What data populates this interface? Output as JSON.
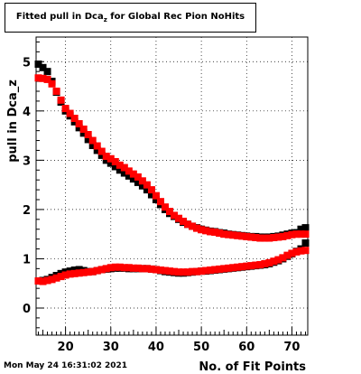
{
  "header": {
    "title_main": "Fitted pull in Dca",
    "title_sub": "z",
    "title_rest": " for Global Rec Pion NoHits"
  },
  "footer": {
    "timestamp": "Mon May 24 16:31:02 2021"
  },
  "chart_data": {
    "type": "scatter",
    "title": "Fitted pull in Dca_z for Global Rec Pion NoHits",
    "xlabel": "No. of Fit Points",
    "ylabel": "pull in Dca_z",
    "xlim": [
      13.5,
      73.5
    ],
    "ylim": [
      -0.55,
      5.5
    ],
    "x_ticks": [
      20,
      30,
      40,
      50,
      60,
      70
    ],
    "y_ticks": [
      0,
      1,
      2,
      3,
      4,
      5
    ],
    "grid": true,
    "series": [
      {
        "color": "#000000",
        "marker": "square",
        "x": [
          14,
          15,
          16,
          17,
          18,
          19,
          20,
          21,
          22,
          23,
          24,
          25,
          26,
          27,
          28,
          29,
          30,
          31,
          32,
          33,
          34,
          35,
          36,
          37,
          38,
          39,
          40,
          41,
          42,
          43,
          44,
          45,
          46,
          47,
          48,
          49,
          50,
          51,
          52,
          53,
          54,
          55,
          56,
          57,
          58,
          59,
          60,
          61,
          62,
          63,
          64,
          65,
          66,
          67,
          68,
          69,
          70,
          71,
          72,
          73
        ],
        "y": [
          4.95,
          4.88,
          4.8,
          4.6,
          4.38,
          4.18,
          4.0,
          3.9,
          3.78,
          3.66,
          3.55,
          3.42,
          3.3,
          3.2,
          3.1,
          3.0,
          2.94,
          2.87,
          2.8,
          2.74,
          2.68,
          2.62,
          2.55,
          2.48,
          2.4,
          2.3,
          2.2,
          2.1,
          2.0,
          1.92,
          1.86,
          1.8,
          1.74,
          1.7,
          1.66,
          1.63,
          1.6,
          1.58,
          1.56,
          1.55,
          1.53,
          1.52,
          1.5,
          1.49,
          1.48,
          1.47,
          1.46,
          1.45,
          1.45,
          1.44,
          1.44,
          1.44,
          1.45,
          1.46,
          1.48,
          1.5,
          1.52,
          1.53,
          1.6,
          1.63
        ],
        "y2": [
          0.55,
          0.56,
          0.58,
          0.62,
          0.66,
          0.7,
          0.73,
          0.75,
          0.77,
          0.78,
          0.76,
          0.74,
          0.74,
          0.76,
          0.78,
          0.79,
          0.8,
          0.81,
          0.81,
          0.81,
          0.8,
          0.8,
          0.8,
          0.8,
          0.8,
          0.79,
          0.78,
          0.76,
          0.74,
          0.73,
          0.72,
          0.71,
          0.71,
          0.72,
          0.73,
          0.74,
          0.75,
          0.75,
          0.76,
          0.77,
          0.78,
          0.79,
          0.8,
          0.81,
          0.82,
          0.83,
          0.84,
          0.85,
          0.86,
          0.87,
          0.88,
          0.9,
          0.93,
          0.96,
          1.0,
          1.05,
          1.1,
          1.15,
          1.2,
          1.32
        ]
      },
      {
        "color": "#ff0000",
        "marker": "square",
        "x": [
          14,
          15,
          16,
          17,
          18,
          19,
          20,
          21,
          22,
          23,
          24,
          25,
          26,
          27,
          28,
          29,
          30,
          31,
          32,
          33,
          34,
          35,
          36,
          37,
          38,
          39,
          40,
          41,
          42,
          43,
          44,
          45,
          46,
          47,
          48,
          49,
          50,
          51,
          52,
          53,
          54,
          55,
          56,
          57,
          58,
          59,
          60,
          61,
          62,
          63,
          64,
          65,
          66,
          67,
          68,
          69,
          70,
          71,
          72,
          73
        ],
        "y": [
          4.67,
          4.66,
          4.64,
          4.55,
          4.4,
          4.22,
          4.05,
          3.95,
          3.85,
          3.74,
          3.63,
          3.52,
          3.4,
          3.29,
          3.18,
          3.08,
          3.03,
          2.97,
          2.9,
          2.85,
          2.78,
          2.72,
          2.66,
          2.58,
          2.5,
          2.4,
          2.28,
          2.16,
          2.05,
          1.96,
          1.88,
          1.82,
          1.76,
          1.7,
          1.66,
          1.62,
          1.59,
          1.57,
          1.55,
          1.54,
          1.52,
          1.5,
          1.49,
          1.48,
          1.47,
          1.46,
          1.45,
          1.44,
          1.43,
          1.42,
          1.42,
          1.42,
          1.43,
          1.44,
          1.45,
          1.47,
          1.49,
          1.5,
          1.5,
          1.5
        ],
        "y2": [
          0.55,
          0.54,
          0.56,
          0.58,
          0.61,
          0.64,
          0.67,
          0.69,
          0.7,
          0.71,
          0.72,
          0.73,
          0.74,
          0.76,
          0.78,
          0.8,
          0.82,
          0.83,
          0.83,
          0.82,
          0.82,
          0.81,
          0.81,
          0.8,
          0.8,
          0.79,
          0.78,
          0.77,
          0.76,
          0.75,
          0.74,
          0.73,
          0.73,
          0.73,
          0.74,
          0.74,
          0.75,
          0.76,
          0.77,
          0.78,
          0.79,
          0.8,
          0.81,
          0.82,
          0.83,
          0.84,
          0.85,
          0.86,
          0.87,
          0.88,
          0.9,
          0.92,
          0.95,
          0.98,
          1.02,
          1.07,
          1.11,
          1.14,
          1.16,
          1.17
        ]
      }
    ]
  }
}
